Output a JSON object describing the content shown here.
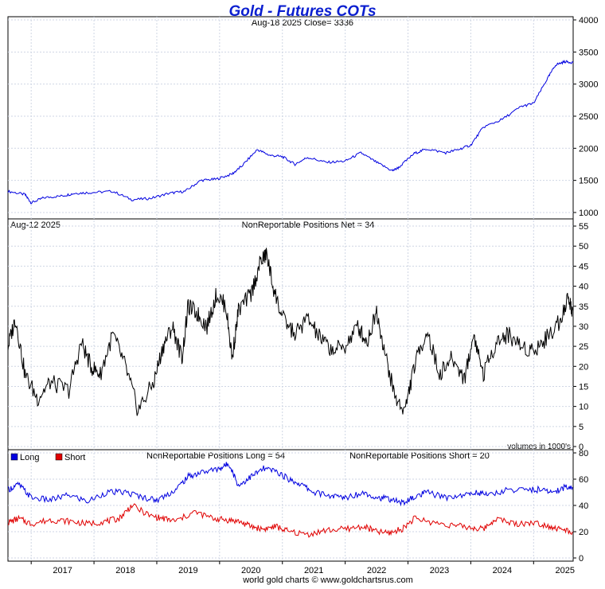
{
  "page": {
    "title": "Gold - Futures COTs",
    "footer": "world gold charts © www.goldchartsrus.com"
  },
  "chart_data": [
    {
      "type": "line",
      "id": "price",
      "subtitle": "Aug-18  2025   Close= 3336",
      "ylim": [
        950,
        4000
      ],
      "yticks": [
        1000,
        1500,
        2000,
        2500,
        3000,
        3500,
        4000
      ],
      "grid": true,
      "series": [
        {
          "color": "#0000e0",
          "x": [
            2016.63,
            2016.9,
            2017.0,
            2017.2,
            2017.5,
            2017.7,
            2017.95,
            2018.3,
            2018.6,
            2018.9,
            2019.2,
            2019.45,
            2019.7,
            2019.95,
            2020.2,
            2020.35,
            2020.6,
            2020.8,
            2021.0,
            2021.2,
            2021.4,
            2021.7,
            2022.0,
            2022.25,
            2022.5,
            2022.75,
            2022.85,
            2023.1,
            2023.3,
            2023.6,
            2023.8,
            2024.0,
            2024.2,
            2024.5,
            2024.8,
            2025.0,
            2025.2,
            2025.35,
            2025.5,
            2025.63
          ],
          "values": [
            1330,
            1280,
            1150,
            1230,
            1260,
            1300,
            1310,
            1330,
            1200,
            1220,
            1300,
            1330,
            1500,
            1520,
            1600,
            1720,
            1980,
            1890,
            1870,
            1750,
            1860,
            1780,
            1800,
            1930,
            1780,
            1650,
            1700,
            1920,
            1990,
            1930,
            1980,
            2050,
            2330,
            2450,
            2650,
            2700,
            3050,
            3300,
            3350,
            3336
          ]
        }
      ]
    },
    {
      "type": "line",
      "id": "net",
      "header_left": "Aug-12  2025",
      "subtitle": "NonReportable Positions Net = 34",
      "note": "volumes in 1000's",
      "ylim": [
        0,
        56
      ],
      "yticks": [
        0,
        5,
        10,
        15,
        20,
        25,
        30,
        35,
        40,
        45,
        50,
        55
      ],
      "grid": true,
      "series": [
        {
          "color": "#000000",
          "x": [
            2016.63,
            2016.75,
            2016.9,
            2017.1,
            2017.3,
            2017.6,
            2017.8,
            2017.95,
            2018.1,
            2018.3,
            2018.5,
            2018.7,
            2018.95,
            2019.1,
            2019.25,
            2019.4,
            2019.5,
            2019.65,
            2019.8,
            2019.95,
            2020.1,
            2020.2,
            2020.3,
            2020.5,
            2020.65,
            2020.75,
            2020.85,
            2021.0,
            2021.2,
            2021.4,
            2021.6,
            2021.8,
            2022.0,
            2022.2,
            2022.35,
            2022.5,
            2022.65,
            2022.8,
            2022.95,
            2023.1,
            2023.3,
            2023.5,
            2023.7,
            2023.9,
            2024.05,
            2024.2,
            2024.4,
            2024.6,
            2024.8,
            2025.0,
            2025.2,
            2025.4,
            2025.55,
            2025.62
          ],
          "values": [
            25,
            32,
            18,
            12,
            16,
            14,
            26,
            20,
            18,
            28,
            20,
            9,
            16,
            25,
            30,
            22,
            35,
            33,
            30,
            38,
            35,
            22,
            34,
            38,
            46,
            48,
            40,
            32,
            28,
            32,
            27,
            24,
            25,
            30,
            26,
            34,
            22,
            12,
            9,
            20,
            29,
            18,
            22,
            17,
            28,
            18,
            26,
            28,
            25,
            24,
            27,
            31,
            37,
            34
          ]
        }
      ]
    },
    {
      "type": "line",
      "id": "long-short",
      "subtitle_long": "NonReportable Positions Long = 54",
      "subtitle_short": "NonReportable Positions Short = 20",
      "ylim": [
        0,
        80
      ],
      "yticks": [
        0,
        20,
        40,
        60,
        80
      ],
      "grid": true,
      "x_ticks": [
        "2017",
        "2018",
        "2019",
        "2020",
        "2021",
        "2022",
        "2023",
        "2024",
        "2025"
      ],
      "xlim": [
        2016.63,
        2025.63
      ],
      "series": [
        {
          "name": "Long",
          "color": "#0000e0",
          "x": [
            2016.63,
            2016.8,
            2017.0,
            2017.3,
            2017.6,
            2017.9,
            2018.2,
            2018.5,
            2018.8,
            2019.0,
            2019.3,
            2019.5,
            2019.7,
            2020.0,
            2020.15,
            2020.3,
            2020.5,
            2020.7,
            2020.9,
            2021.1,
            2021.3,
            2021.5,
            2021.8,
            2022.0,
            2022.3,
            2022.5,
            2022.7,
            2022.9,
            2023.1,
            2023.3,
            2023.6,
            2023.9,
            2024.1,
            2024.3,
            2024.6,
            2024.9,
            2025.1,
            2025.3,
            2025.5,
            2025.62
          ],
          "values": [
            52,
            56,
            46,
            44,
            48,
            43,
            50,
            50,
            46,
            44,
            52,
            62,
            65,
            68,
            72,
            55,
            62,
            68,
            66,
            60,
            56,
            50,
            47,
            46,
            50,
            46,
            45,
            42,
            46,
            50,
            46,
            48,
            50,
            48,
            52,
            52,
            52,
            50,
            54,
            54
          ]
        },
        {
          "name": "Short",
          "color": "#e00000",
          "x": [
            2016.63,
            2016.8,
            2017.0,
            2017.3,
            2017.6,
            2017.9,
            2018.2,
            2018.4,
            2018.6,
            2018.9,
            2019.1,
            2019.3,
            2019.6,
            2019.9,
            2020.1,
            2020.3,
            2020.5,
            2020.7,
            2020.9,
            2021.1,
            2021.4,
            2021.7,
            2022.0,
            2022.3,
            2022.5,
            2022.7,
            2022.9,
            2023.1,
            2023.4,
            2023.7,
            2024.0,
            2024.2,
            2024.4,
            2024.7,
            2025.0,
            2025.2,
            2025.4,
            2025.62
          ],
          "values": [
            27,
            30,
            26,
            29,
            28,
            26,
            28,
            30,
            40,
            32,
            30,
            28,
            35,
            30,
            29,
            28,
            24,
            22,
            24,
            20,
            18,
            21,
            22,
            24,
            20,
            19,
            22,
            30,
            27,
            25,
            23,
            22,
            30,
            26,
            27,
            25,
            22,
            20
          ]
        }
      ]
    }
  ]
}
